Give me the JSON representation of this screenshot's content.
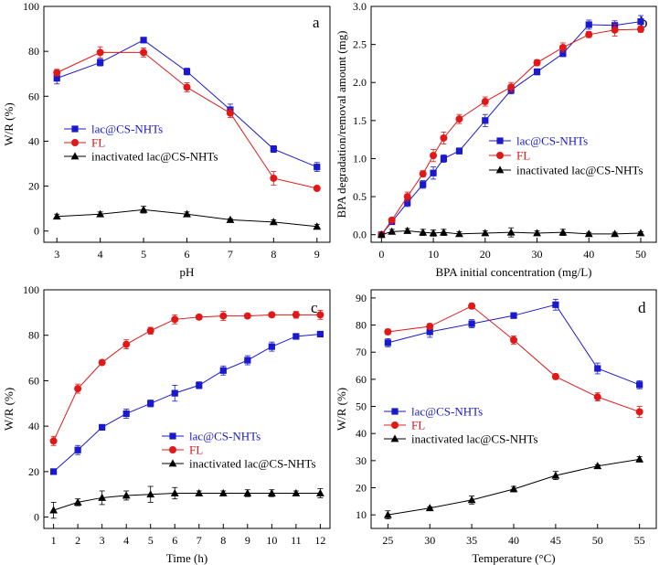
{
  "figure": {
    "description_free": true
  },
  "colors": {
    "blue": "#1a1acc",
    "red": "#e01818",
    "black": "#000000"
  },
  "legend": {
    "labels": [
      "lac@CS-NHTs",
      "FL",
      "inactivated lac@CS-NHTs"
    ]
  },
  "chart_data": [
    {
      "panel": "a",
      "type": "line",
      "xlabel": "pH",
      "ylabel": "W/R (%)",
      "xlim": [
        2.7,
        9.3
      ],
      "ylim": [
        -5,
        100
      ],
      "xticks": [
        3,
        4,
        5,
        6,
        7,
        8,
        9
      ],
      "yticks": [
        0,
        20,
        40,
        60,
        80,
        100
      ],
      "x": [
        3,
        4,
        5,
        6,
        7,
        8,
        9
      ],
      "series": [
        {
          "name": "lac@CS-NHTs",
          "values": [
            68,
            75,
            85,
            71,
            54,
            36.5,
            28.5
          ],
          "errors": [
            2.5,
            1.5,
            1,
            1.5,
            2.5,
            1.5,
            2
          ]
        },
        {
          "name": "FL",
          "values": [
            70.5,
            79.5,
            79.5,
            64,
            52.5,
            23.5,
            19
          ],
          "errors": [
            1.5,
            2.5,
            2,
            2,
            2,
            3,
            1
          ]
        },
        {
          "name": "inactivated lac@CS-NHTs",
          "values": [
            6.5,
            7.5,
            9.5,
            7.5,
            5,
            4,
            2
          ],
          "errors": [
            1,
            1,
            1.5,
            1,
            0.5,
            1,
            1
          ]
        }
      ]
    },
    {
      "panel": "b",
      "type": "line",
      "xlabel": "BPA initial concentration (mg/L)",
      "ylabel": "BPA degradation/removal amount (mg)",
      "xlim": [
        -2,
        53
      ],
      "ylim": [
        -0.1,
        3.0
      ],
      "xticks": [
        0,
        10,
        20,
        30,
        40,
        50
      ],
      "yticks": [
        0.0,
        0.5,
        1.0,
        1.5,
        2.0,
        2.5,
        3.0
      ],
      "series": [
        {
          "name": "lac@CS-NHTs",
          "x": [
            0,
            2,
            5,
            8,
            10,
            12,
            15,
            20,
            25,
            30,
            35,
            40,
            45,
            50
          ],
          "values": [
            0,
            0.17,
            0.42,
            0.66,
            0.81,
            1.0,
            1.1,
            1.5,
            1.9,
            2.14,
            2.38,
            2.76,
            2.75,
            2.8
          ],
          "errors": [
            0.02,
            0.03,
            0.05,
            0.05,
            0.08,
            0.05,
            0.04,
            0.08,
            0.05,
            0.04,
            0.04,
            0.06,
            0.06,
            0.08
          ]
        },
        {
          "name": "FL",
          "x": [
            0,
            2,
            5,
            8,
            10,
            12,
            15,
            20,
            25,
            30,
            35,
            40,
            45,
            50
          ],
          "values": [
            0,
            0.19,
            0.5,
            0.8,
            1.04,
            1.27,
            1.52,
            1.75,
            1.94,
            2.26,
            2.46,
            2.63,
            2.69,
            2.7
          ],
          "errors": [
            0.02,
            0.03,
            0.06,
            0.04,
            0.08,
            0.08,
            0.06,
            0.06,
            0.06,
            0.04,
            0.06,
            0.04,
            0.08,
            0.04
          ]
        },
        {
          "name": "inactivated lac@CS-NHTs",
          "x": [
            0,
            2,
            5,
            8,
            10,
            12,
            15,
            20,
            25,
            30,
            35,
            40,
            45,
            50
          ],
          "values": [
            0,
            0.04,
            0.05,
            0.03,
            0.02,
            0.03,
            0.01,
            0.02,
            0.03,
            0.02,
            0.03,
            0.01,
            0.01,
            0.02
          ],
          "errors": [
            0.01,
            0.03,
            0.03,
            0.04,
            0.04,
            0.04,
            0.03,
            0.03,
            0.06,
            0.03,
            0.04,
            0.02,
            0.02,
            0.02
          ]
        }
      ]
    },
    {
      "panel": "c",
      "type": "line",
      "xlabel": "Time (h)",
      "ylabel": "W/R (%)",
      "xlim": [
        0.6,
        12.4
      ],
      "ylim": [
        -5,
        100
      ],
      "xticks": [
        1,
        2,
        3,
        4,
        5,
        6,
        7,
        8,
        9,
        10,
        11,
        12
      ],
      "yticks": [
        0,
        20,
        40,
        60,
        80,
        100
      ],
      "x": [
        1,
        2,
        3,
        4,
        5,
        6,
        7,
        8,
        9,
        10,
        11,
        12
      ],
      "series": [
        {
          "name": "lac@CS-NHTs",
          "values": [
            20,
            29.5,
            39.5,
            45.5,
            50,
            54.5,
            58,
            64.5,
            69,
            75,
            79.5,
            80.5
          ],
          "errors": [
            1,
            2,
            1,
            2,
            1.5,
            3.5,
            1.5,
            2,
            2,
            2,
            1,
            1
          ]
        },
        {
          "name": "FL",
          "values": [
            33.5,
            56.5,
            68,
            76,
            82,
            87,
            88,
            88.5,
            88.5,
            89,
            89,
            89
          ],
          "errors": [
            2,
            2,
            1,
            2,
            1.5,
            2,
            1,
            2,
            1,
            1,
            1.5,
            2
          ]
        },
        {
          "name": "inactivated lac@CS-NHTs",
          "values": [
            3,
            6.5,
            8.5,
            9.5,
            10,
            10.5,
            10.5,
            10.5,
            10.5,
            10.5,
            10.5,
            10.5
          ],
          "errors": [
            3.5,
            1.5,
            3,
            2,
            3.5,
            2.5,
            1,
            1,
            1.5,
            1.5,
            1,
            2
          ]
        }
      ]
    },
    {
      "panel": "d",
      "type": "line",
      "xlabel": "Temperature (°C)",
      "ylabel": "W/R (%)",
      "xlim": [
        23,
        57
      ],
      "ylim": [
        5,
        93
      ],
      "xticks": [
        25,
        30,
        35,
        40,
        45,
        50,
        55
      ],
      "yticks": [
        10,
        20,
        30,
        40,
        50,
        60,
        70,
        80,
        90
      ],
      "x": [
        25,
        30,
        35,
        40,
        45,
        50,
        55
      ],
      "series": [
        {
          "name": "lac@CS-NHTs",
          "values": [
            73.5,
            77.5,
            80.5,
            83.5,
            87.5,
            64,
            58
          ],
          "errors": [
            1.5,
            2,
            1.5,
            1,
            2,
            2,
            1.5
          ]
        },
        {
          "name": "FL",
          "values": [
            77.5,
            79.5,
            87,
            74.5,
            61,
            53.5,
            48
          ],
          "errors": [
            1,
            1,
            1,
            1.5,
            1,
            1.5,
            2
          ]
        },
        {
          "name": "inactivated lac@CS-NHTs",
          "values": [
            10,
            12.5,
            15.5,
            19.5,
            24.5,
            28,
            30.5
          ],
          "errors": [
            1.5,
            0.5,
            1.5,
            1,
            1.5,
            0.5,
            1
          ]
        }
      ]
    }
  ]
}
